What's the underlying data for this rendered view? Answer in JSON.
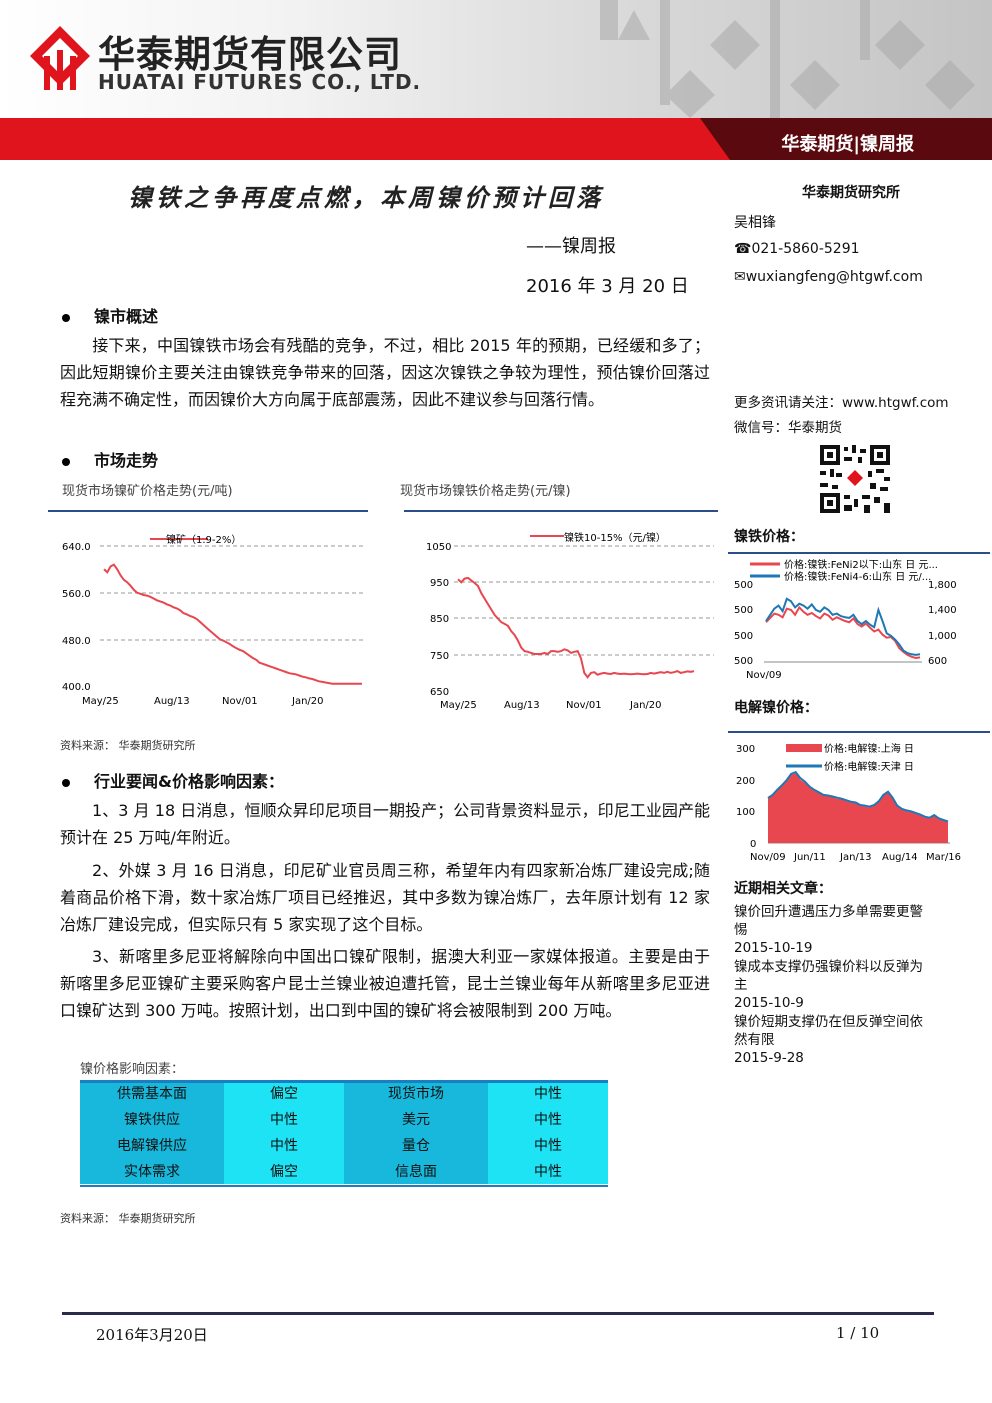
{
  "header": {
    "company_cn": "华泰期货有限公司",
    "company_en": "HUATAI FUTURES CO., LTD.",
    "brand_tag": "华泰期货|镍周报"
  },
  "title": {
    "main": "镍铁之争再度点燃，本周镍价预计回落",
    "subtitle": "——镍周报",
    "date": "2016 年 3 月 20 日"
  },
  "sidebar": {
    "institute": "华泰期货研究所",
    "analyst": "吴相锋",
    "phone": "☎021-5860-5291",
    "email": "✉wuxiangfeng@htgwf.com",
    "more_info": "更多资讯请关注：www.htgwf.com",
    "wechat": "微信号：华泰期货",
    "nickel_iron_heading": "镍铁价格：",
    "electrolytic_heading": "电解镍价格：",
    "recent_heading": "近期相关文章：",
    "articles": [
      {
        "title": "镍价回升遭遇压力多单需要更警惕",
        "date": "2015-10-19"
      },
      {
        "title": "镍成本支撑仍强镍价料以反弹为主",
        "date": "2015-10-9"
      },
      {
        "title": "镍价短期支撑仍在但反弹空间依然有限",
        "date": "2015-9-28"
      }
    ]
  },
  "sections": {
    "overview_heading": "镍市概述",
    "overview_text": "接下来，中国镍铁市场会有残酷的竞争，不过，相比 2015 年的预期，已经缓和多了；因此短期镍价主要关注由镍铁竞争带来的回落，因这次镍铁之争较为理性，预估镍价回落过程充满不确定性，而因镍价大方向属于底部震荡，因此不建议参与回落行情。",
    "market_heading": "市场走势",
    "news_heading": "行业要闻&价格影响因素：",
    "news": [
      "1、3 月 18 日消息，恒顺众昇印尼项目一期投产；公司背景资料显示，印尼工业园产能预计在 25 万吨/年附近。",
      "2、外媒 3 月 16 日消息，印尼矿业官员周三称，希望年内有四家新冶炼厂建设完成;随着商品价格下滑，数十家冶炼厂项目已经推迟，其中多数为镍冶炼厂，去年原计划有 12 家冶炼厂建设完成，但实际只有 5 家实现了这个目标。",
      "3、新喀里多尼亚将解除向中国出口镍矿限制，据澳大利亚一家媒体报道。主要是由于新喀里多尼亚镍矿主要采购客户昆士兰镍业被迫遭托管，昆士兰镍业每年从新喀里多尼亚进口镍矿达到 300 万吨。按照计划，出口到中国的镍矿将会被限制到 200 万吨。"
    ],
    "source_1": "资料来源：  华泰期货研究所",
    "source_2": "资料来源：  华泰期货研究所"
  },
  "factors": {
    "title": "镍价格影响因素：",
    "rows": [
      [
        "供需基本面",
        "偏空",
        "现货市场",
        "中性"
      ],
      [
        "镍铁供应",
        "中性",
        "美元",
        "中性"
      ],
      [
        "电解镍供应",
        "中性",
        "量仓",
        "中性"
      ],
      [
        "实体需求",
        "偏空",
        "信息面",
        "中性"
      ]
    ]
  },
  "footer": {
    "date": "2016年3月20日",
    "page": "1 / 10"
  },
  "colors": {
    "brand_red": "#e0141c",
    "series_red": "#e8474f",
    "series_blue": "#1f77b4"
  },
  "chart_data": [
    {
      "type": "line",
      "caption": "现货市场镍矿价格走势(元/吨)",
      "series": [
        {
          "name": "镍矿（1.9-2%）",
          "values": [
            600,
            595,
            605,
            608,
            600,
            590,
            582,
            578,
            572,
            565,
            560,
            558,
            556,
            555,
            553,
            550,
            547,
            545,
            543,
            540,
            538,
            535,
            533,
            530,
            525,
            523,
            520,
            518,
            515,
            510,
            505,
            500,
            495,
            490,
            485,
            480,
            478,
            475,
            472,
            468,
            465,
            462,
            460,
            456,
            452,
            448,
            445,
            440,
            438,
            436,
            434,
            432,
            430,
            428,
            426,
            424,
            422,
            421,
            420,
            418,
            416,
            415,
            413,
            412,
            410,
            408,
            407,
            406,
            405,
            404,
            404,
            404,
            404,
            404,
            404,
            404,
            404,
            404,
            404
          ]
        }
      ],
      "x_ticks": [
        "May/25",
        "Aug/13",
        "Nov/01",
        "Jan/20"
      ],
      "y_ticks": [
        "640.0",
        "560.0",
        "480.0",
        "400.0"
      ],
      "ylim": [
        400,
        640
      ]
    },
    {
      "type": "line",
      "caption": "现货市场镍铁价格走势(元/镍)",
      "series": [
        {
          "name": "镍铁10-15%（元/镍）",
          "values": [
            958,
            950,
            960,
            962,
            955,
            948,
            940,
            920,
            905,
            890,
            875,
            860,
            850,
            840,
            835,
            830,
            815,
            805,
            790,
            770,
            760,
            758,
            755,
            752,
            752,
            752,
            755,
            752,
            760,
            760,
            758,
            760,
            765,
            762,
            755,
            758,
            760,
            740,
            700,
            688,
            700,
            702,
            695,
            698,
            700,
            698,
            697,
            700,
            698,
            697,
            698,
            697,
            696,
            697,
            698,
            697,
            696,
            697,
            700,
            698,
            700,
            702,
            700,
            703,
            700,
            702,
            705,
            700,
            702,
            704,
            703,
            705
          ]
        }
      ],
      "x_ticks": [
        "May/25",
        "Aug/13",
        "Nov/01",
        "Jan/20"
      ],
      "y_ticks": [
        "1050",
        "950",
        "850",
        "750",
        "650"
      ],
      "ylim": [
        650,
        1050
      ]
    },
    {
      "type": "line",
      "legend": [
        "价格:镍铁:FeNi2以下:山东 日 元...",
        "价格:镍铁:FeNi4-6:山东 日 元/..."
      ],
      "left_ticks": [
        "500",
        "500",
        "500",
        "500"
      ],
      "right_ticks": [
        "1,800",
        "1,400",
        "1,000",
        "600"
      ],
      "x_ticks": [
        "Nov/09"
      ],
      "series": [
        {
          "name": "价格:镍铁:FeNi2以下:山东 日 元...",
          "values": [
            1180,
            1250,
            1320,
            1300,
            1260,
            1400,
            1380,
            1300,
            1420,
            1350,
            1300,
            1330,
            1280,
            1240,
            1320,
            1290,
            1220,
            1260,
            1230,
            1200,
            1180,
            1240,
            1150,
            1110,
            1160,
            1090,
            1030,
            1060,
            980,
            930,
            940,
            880,
            760,
            700,
            650,
            620,
            600,
            610
          ]
        },
        {
          "name": "价格:镍铁:FeNi4-6:山东 日 元/...",
          "values": [
            1200,
            1300,
            1400,
            1450,
            1360,
            1560,
            1520,
            1420,
            1480,
            1450,
            1400,
            1470,
            1380,
            1350,
            1420,
            1380,
            1300,
            1320,
            1280,
            1260,
            1250,
            1300,
            1200,
            1150,
            1200,
            1140,
            1100,
            1380,
            1200,
            1000,
            960,
            900,
            820,
            720,
            680,
            660,
            650,
            660
          ]
        }
      ]
    },
    {
      "type": "area",
      "legend": [
        "价格:电解镍:上海 日",
        "价格:电解镍:天津 日"
      ],
      "y_ticks": [
        "300",
        "200",
        "100",
        "0"
      ],
      "x_ticks": [
        "Nov/09",
        "Jun/11",
        "Jan/13",
        "Aug/14",
        "Mar/16"
      ],
      "ylim": [
        0,
        300
      ],
      "series": [
        {
          "name": "价格:电解镍:上海 日",
          "values": [
            140,
            150,
            165,
            180,
            195,
            215,
            220,
            200,
            190,
            175,
            165,
            158,
            150,
            148,
            145,
            140,
            138,
            132,
            128,
            125,
            118,
            115,
            112,
            118,
            130,
            150,
            160,
            140,
            115,
            105,
            100,
            98,
            92,
            88,
            80,
            78,
            85,
            75,
            70,
            65
          ]
        },
        {
          "name": "价格:电解镍:天津 日",
          "values": [
            142,
            152,
            168,
            182,
            198,
            218,
            224,
            205,
            194,
            178,
            168,
            160,
            152,
            150,
            147,
            143,
            140,
            135,
            130,
            128,
            120,
            118,
            115,
            120,
            132,
            152,
            162,
            143,
            118,
            108,
            103,
            100,
            95,
            90,
            83,
            80,
            88,
            78,
            73,
            68
          ]
        }
      ]
    }
  ]
}
